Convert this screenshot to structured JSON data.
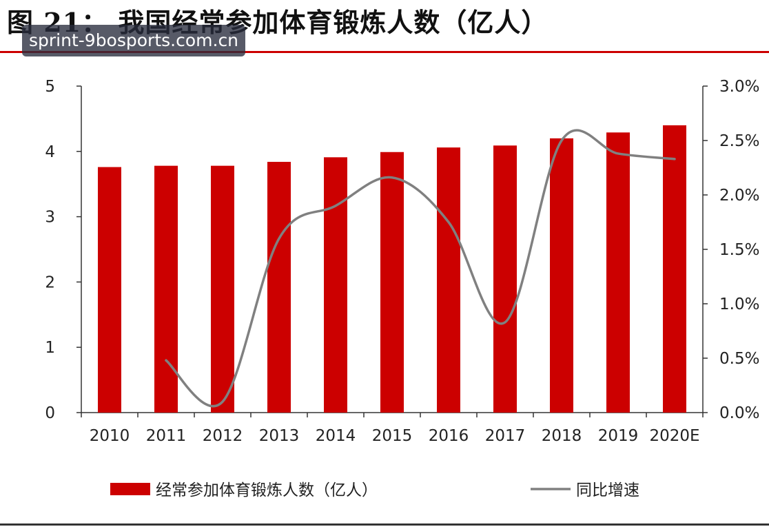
{
  "title": "图 21： 我国经常参加体育锻炼人数（亿人）",
  "watermark": "sprint-9bosports.com.cn",
  "colors": {
    "bar": "#cc0000",
    "line": "#808080",
    "rule": "#cc0000",
    "axis": "#333333",
    "text": "#222222"
  },
  "chart_data": {
    "type": "bar",
    "categories": [
      "2010",
      "2011",
      "2012",
      "2013",
      "2014",
      "2015",
      "2016",
      "2017",
      "2018",
      "2019",
      "2020E"
    ],
    "series": [
      {
        "name": "经常参加体育锻炼人数（亿人）",
        "type": "bar",
        "axis": "left",
        "values": [
          3.76,
          3.78,
          3.78,
          3.84,
          3.91,
          3.99,
          4.06,
          4.09,
          4.2,
          4.29,
          4.4
        ]
      },
      {
        "name": "同比增速",
        "type": "line",
        "axis": "right",
        "values": [
          null,
          0.0048,
          0.001,
          0.016,
          0.019,
          0.0216,
          0.0175,
          0.0083,
          0.025,
          0.0238,
          0.0233
        ]
      }
    ],
    "y_left": {
      "min": 0,
      "max": 5,
      "ticks": [
        "0",
        "1",
        "2",
        "3",
        "4",
        "5"
      ]
    },
    "y_right": {
      "min": 0,
      "max": 0.03,
      "ticks": [
        "0.0%",
        "0.5%",
        "1.0%",
        "1.5%",
        "2.0%",
        "2.5%",
        "3.0%"
      ]
    },
    "grid": false,
    "legend_position": "bottom"
  }
}
